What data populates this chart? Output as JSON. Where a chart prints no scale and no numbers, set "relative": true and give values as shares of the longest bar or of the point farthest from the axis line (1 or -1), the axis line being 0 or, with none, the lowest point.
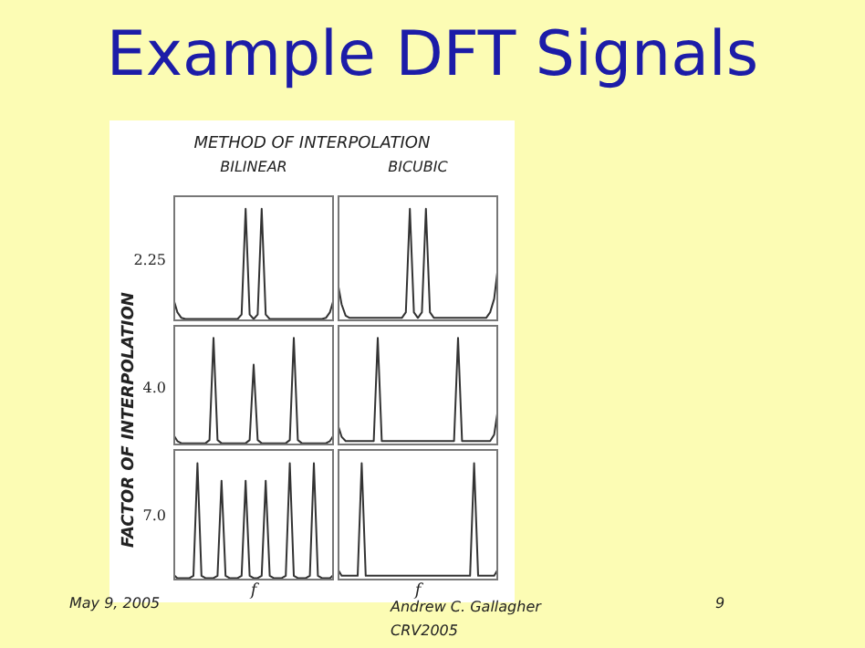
{
  "chart_data": [
    {
      "type": "line",
      "title": "BILINEAR",
      "ylabel": "2.25",
      "relative": true,
      "marker": "none",
      "categories": [
        null,
        null,
        null,
        null,
        null,
        null,
        null,
        null,
        null,
        null,
        null,
        null,
        null,
        null,
        null,
        null,
        null,
        null,
        null,
        null,
        null,
        null,
        null,
        null,
        null,
        null,
        null,
        null,
        null,
        null,
        null,
        null,
        null,
        null,
        null,
        null,
        null,
        null,
        null,
        null,
        null
      ],
      "values": [
        0.2,
        0.08,
        0.03,
        0.02,
        0.02,
        0.02,
        0.02,
        0.02,
        0.02,
        0.02,
        0.02,
        0.02,
        0.02,
        0.02,
        0.02,
        0.02,
        0.02,
        0.06,
        1,
        0.06,
        0.02,
        0.06,
        1,
        0.06,
        0.02,
        0.02,
        0.02,
        0.02,
        0.02,
        0.02,
        0.02,
        0.02,
        0.02,
        0.02,
        0.02,
        0.02,
        0.02,
        0.02,
        0.03,
        0.08,
        0.2
      ],
      "color": "#333333",
      "annotations": [
        "Example DFT Signals",
        "METHOD OF INTERPOLATION",
        "FACTOR OF INTERPOLATION",
        "May 9, 2005",
        "Andrew C. Gallagher\nCRV2005",
        "9"
      ]
    },
    {
      "type": "line",
      "title": "BICUBIC",
      "relative": true,
      "marker": "none",
      "categories": [
        null,
        null,
        null,
        null,
        null,
        null,
        null,
        null,
        null,
        null,
        null,
        null,
        null,
        null,
        null,
        null,
        null,
        null,
        null,
        null,
        null,
        null,
        null,
        null,
        null,
        null,
        null,
        null,
        null,
        null,
        null,
        null,
        null,
        null,
        null,
        null,
        null,
        null,
        null,
        null,
        null
      ],
      "values": [
        0.35,
        0.15,
        0.05,
        0.03,
        0.03,
        0.03,
        0.03,
        0.03,
        0.03,
        0.03,
        0.03,
        0.03,
        0.03,
        0.03,
        0.03,
        0.03,
        0.03,
        0.08,
        1,
        0.08,
        0.03,
        0.08,
        1,
        0.08,
        0.03,
        0.03,
        0.03,
        0.03,
        0.03,
        0.03,
        0.03,
        0.03,
        0.03,
        0.03,
        0.03,
        0.03,
        0.03,
        0.03,
        0.08,
        0.2,
        0.5
      ],
      "color": "#333333"
    },
    {
      "type": "line",
      "ylabel": "4.0",
      "relative": true,
      "marker": "none",
      "categories": [
        null,
        null,
        null,
        null,
        null,
        null,
        null,
        null,
        null,
        null,
        null,
        null,
        null,
        null,
        null,
        null,
        null,
        null,
        null,
        null,
        null,
        null,
        null,
        null,
        null,
        null,
        null,
        null,
        null,
        null,
        null,
        null,
        null,
        null,
        null,
        null,
        null,
        null,
        null,
        null,
        null
      ],
      "values": [
        0.1,
        0.04,
        0.02,
        0.02,
        0.02,
        0.02,
        0.02,
        0.02,
        0.02,
        0.05,
        1,
        0.05,
        0.02,
        0.02,
        0.02,
        0.02,
        0.02,
        0.02,
        0.02,
        0.05,
        0.75,
        0.05,
        0.02,
        0.02,
        0.02,
        0.02,
        0.02,
        0.02,
        0.02,
        0.05,
        1,
        0.05,
        0.02,
        0.02,
        0.02,
        0.02,
        0.02,
        0.02,
        0.02,
        0.04,
        0.1
      ],
      "color": "#333333"
    },
    {
      "type": "line",
      "relative": true,
      "marker": "none",
      "categories": [
        null,
        null,
        null,
        null,
        null,
        null,
        null,
        null,
        null,
        null,
        null,
        null,
        null,
        null,
        null,
        null,
        null,
        null,
        null,
        null,
        null,
        null,
        null,
        null,
        null,
        null,
        null,
        null,
        null,
        null,
        null,
        null,
        null,
        null,
        null,
        null,
        null,
        null,
        null,
        null,
        null
      ],
      "values": [
        0.2,
        0.08,
        0.04,
        0.04,
        0.04,
        0.04,
        0.04,
        0.04,
        0.04,
        0.04,
        1,
        0.04,
        0.04,
        0.04,
        0.04,
        0.04,
        0.04,
        0.04,
        0.04,
        0.04,
        0.04,
        0.04,
        0.04,
        0.04,
        0.04,
        0.04,
        0.04,
        0.04,
        0.04,
        0.04,
        1,
        0.04,
        0.04,
        0.04,
        0.04,
        0.04,
        0.04,
        0.04,
        0.04,
        0.1,
        0.35
      ],
      "color": "#333333"
    },
    {
      "type": "line",
      "ylabel": "7.0",
      "xlabel": "f",
      "relative": true,
      "marker": "none",
      "categories": [
        null,
        null,
        null,
        null,
        null,
        null,
        null,
        null,
        null,
        null,
        null,
        null,
        null,
        null,
        null,
        null,
        null,
        null,
        null,
        null,
        null,
        null,
        null,
        null,
        null,
        null,
        null,
        null,
        null,
        null,
        null,
        null,
        null,
        null,
        null,
        null,
        null,
        null,
        null,
        null,
        null
      ],
      "values": [
        0.05,
        0.02,
        0.02,
        0.02,
        0.02,
        0.04,
        1,
        0.04,
        0.02,
        0.02,
        0.02,
        0.04,
        0.85,
        0.04,
        0.02,
        0.02,
        0.02,
        0.04,
        0.85,
        0.04,
        0.02,
        0.02,
        0.04,
        0.85,
        0.04,
        0.02,
        0.02,
        0.02,
        0.04,
        1,
        0.04,
        0.02,
        0.02,
        0.02,
        0.04,
        1,
        0.04,
        0.02,
        0.02,
        0.02,
        0.05
      ],
      "color": "#333333"
    },
    {
      "type": "line",
      "xlabel": "f",
      "relative": true,
      "marker": "none",
      "categories": [
        null,
        null,
        null,
        null,
        null,
        null,
        null,
        null,
        null,
        null,
        null,
        null,
        null,
        null,
        null,
        null,
        null,
        null,
        null,
        null,
        null,
        null,
        null,
        null,
        null,
        null,
        null,
        null,
        null,
        null,
        null,
        null,
        null,
        null,
        null,
        null,
        null,
        null,
        null,
        null,
        null
      ],
      "values": [
        0.1,
        0.04,
        0.04,
        0.04,
        0.04,
        0.04,
        1,
        0.04,
        0.04,
        0.04,
        0.04,
        0.04,
        0.04,
        0.04,
        0.04,
        0.04,
        0.04,
        0.04,
        0.04,
        0.04,
        0.04,
        0.04,
        0.04,
        0.04,
        0.04,
        0.04,
        0.04,
        0.04,
        0.04,
        0.04,
        0.04,
        0.04,
        0.04,
        0.04,
        1,
        0.04,
        0.04,
        0.04,
        0.04,
        0.04,
        0.1
      ],
      "color": "#333333"
    }
  ]
}
